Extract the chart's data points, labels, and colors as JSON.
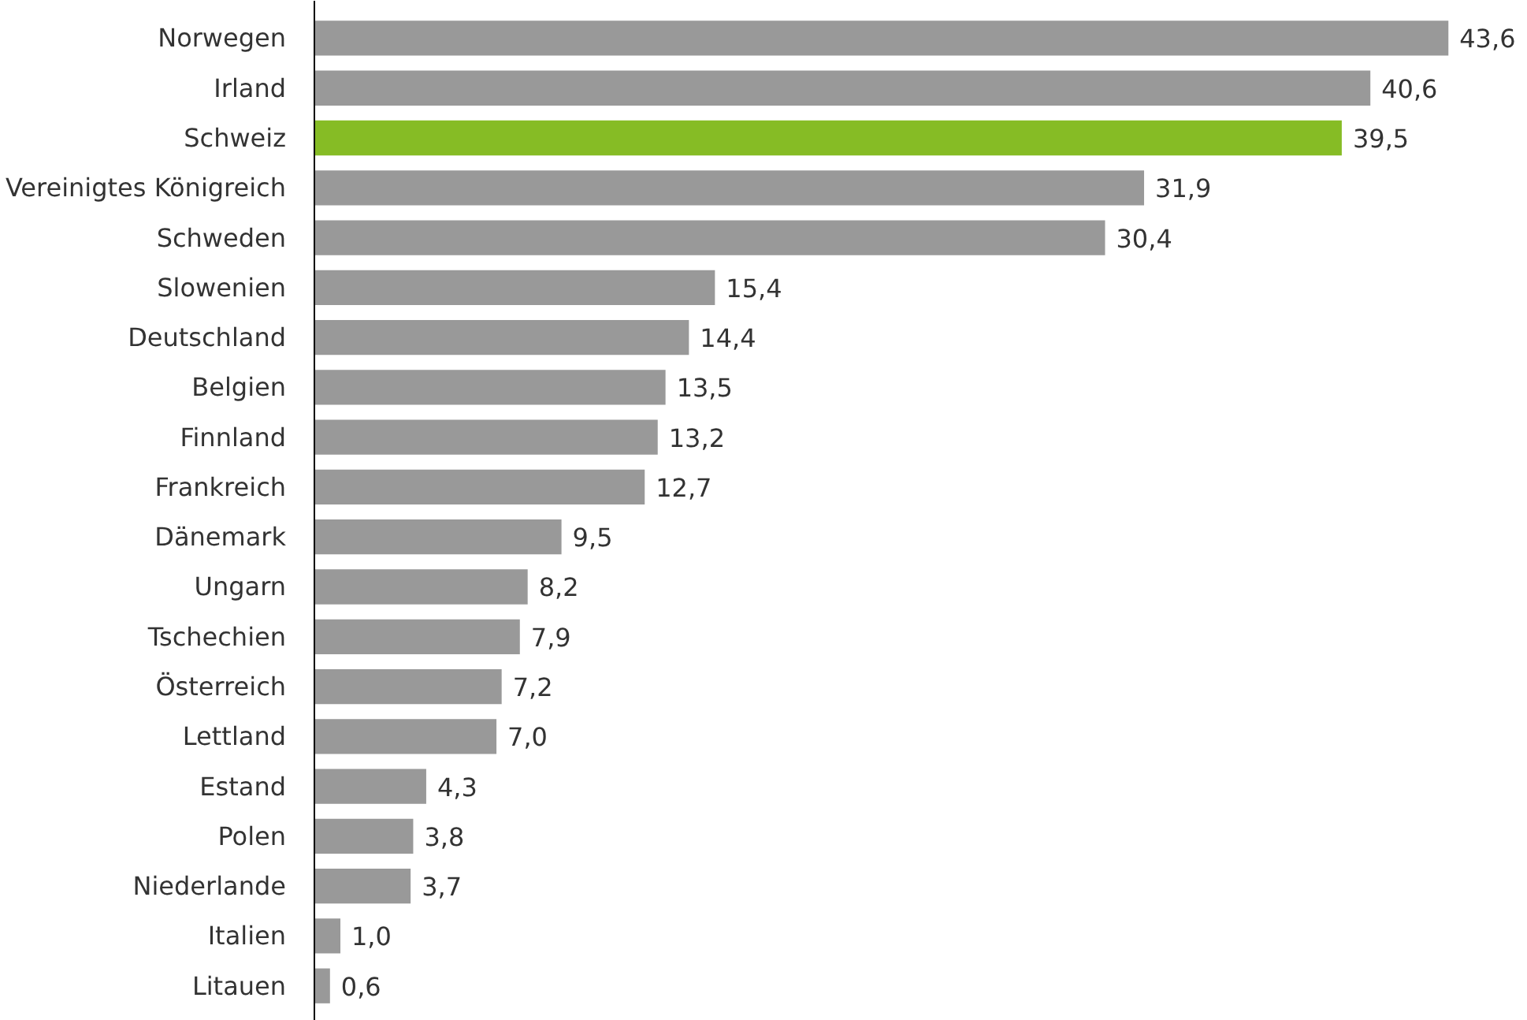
{
  "chart_data": {
    "type": "bar",
    "orientation": "horizontal",
    "categories": [
      "Norwegen",
      "Irland",
      "Schweiz",
      "Vereinigtes Königreich",
      "Schweden",
      "Slowenien",
      "Deutschland",
      "Belgien",
      "Finnland",
      "Frankreich",
      "Dänemark",
      "Ungarn",
      "Tschechien",
      "Österreich",
      "Lettland",
      "Estand",
      "Polen",
      "Niederlande",
      "Italien",
      "Litauen"
    ],
    "values": [
      43.6,
      40.6,
      39.5,
      31.9,
      30.4,
      15.4,
      14.4,
      13.5,
      13.2,
      12.7,
      9.5,
      8.2,
      7.9,
      7.2,
      7.0,
      4.3,
      3.8,
      3.7,
      1.0,
      0.6
    ],
    "value_labels": [
      "43,6",
      "40,6",
      "39,5",
      "31,9",
      "30,4",
      "15,4",
      "14,4",
      "13,5",
      "13,2",
      "12,7",
      "9,5",
      "8,2",
      "7,9",
      "7,2",
      "7,0",
      "4,3",
      "3,8",
      "3,7",
      "1,0",
      "0,6"
    ],
    "colors": [
      "#999999",
      "#999999",
      "#86bc25",
      "#999999",
      "#999999",
      "#999999",
      "#999999",
      "#999999",
      "#999999",
      "#999999",
      "#999999",
      "#999999",
      "#999999",
      "#999999",
      "#999999",
      "#999999",
      "#999999",
      "#999999",
      "#999999",
      "#999999"
    ],
    "grid": false
  }
}
